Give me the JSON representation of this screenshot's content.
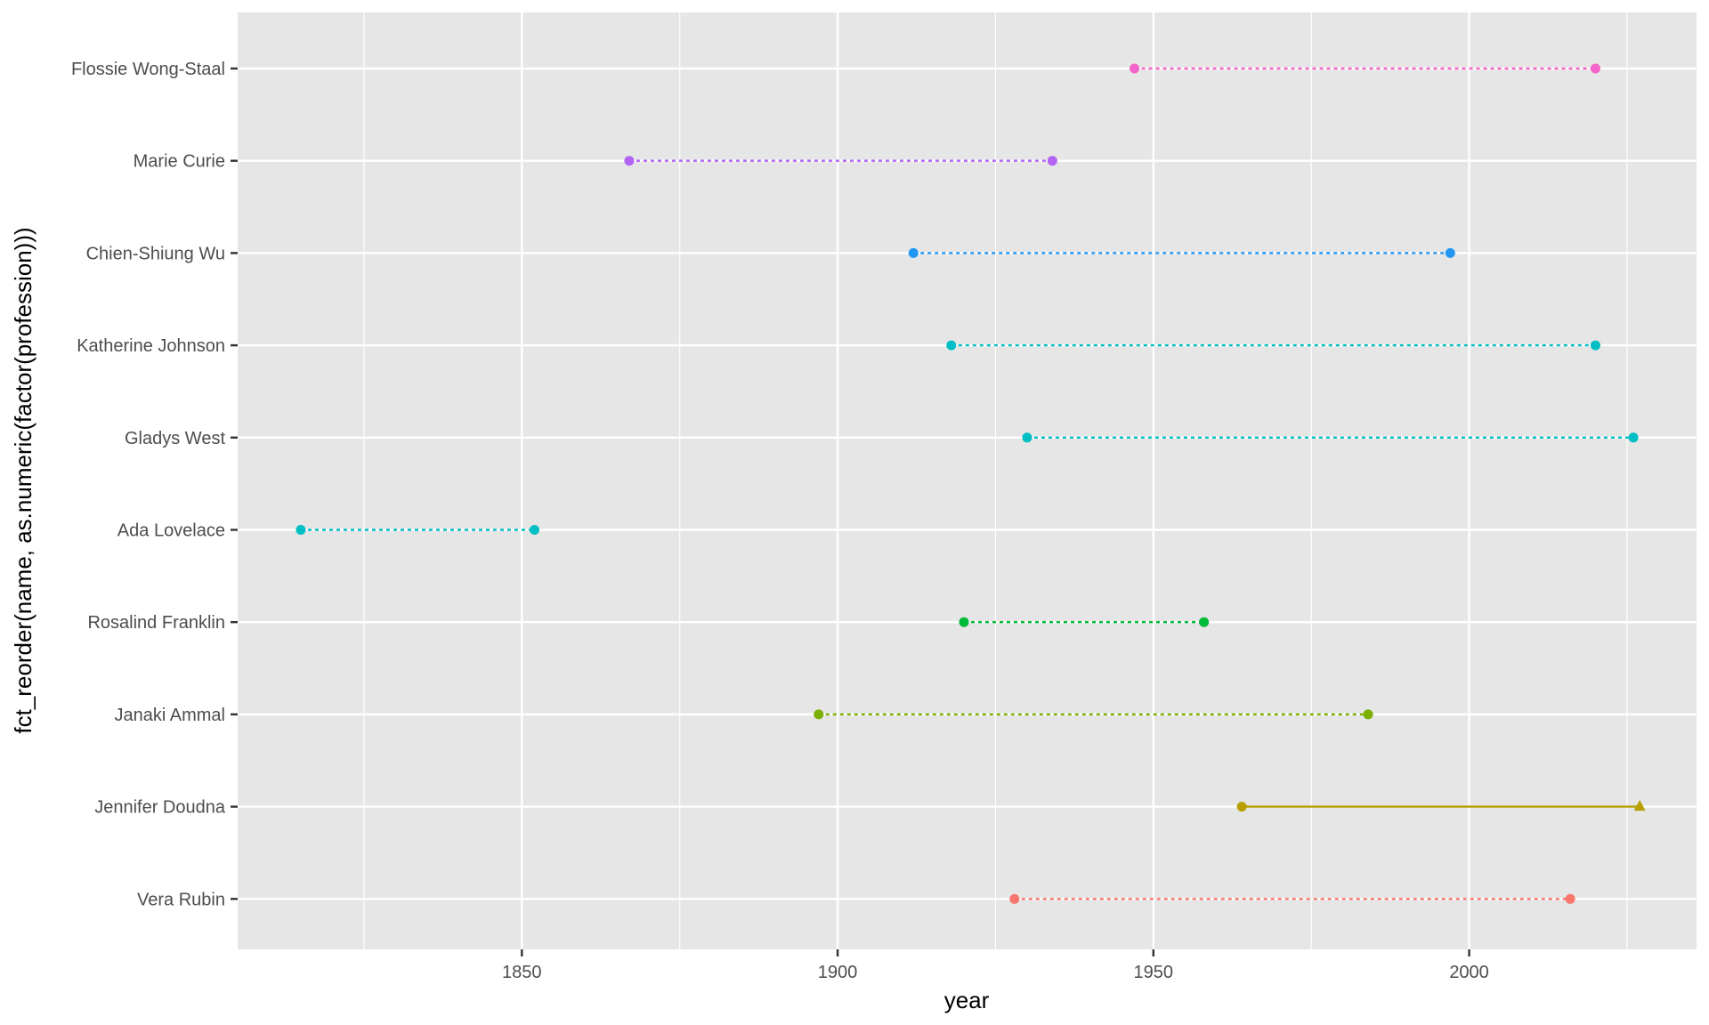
{
  "chart_data": {
    "type": "dumbbell",
    "title": "",
    "xlabel": "year",
    "ylabel": "fct_reorder(name, as.numeric(factor(profession)))",
    "xlim": [
      1805,
      2036
    ],
    "x_ticks": [
      1850,
      1900,
      1950,
      2000
    ],
    "x_minor_ticks": [
      1825,
      1875,
      1925,
      1975,
      2025
    ],
    "grid": true,
    "legend": "none",
    "categories": [
      "Vera Rubin",
      "Jennifer Doudna",
      "Janaki Ammal",
      "Rosalind Franklin",
      "Ada Lovelace",
      "Gladys West",
      "Katherine Johnson",
      "Chien-Shiung Wu",
      "Marie Curie",
      "Flossie Wong-Staal"
    ],
    "series": [
      {
        "category": "Vera Rubin",
        "start": 1928,
        "end": 2016,
        "color": "#F8766D",
        "line": "dotted",
        "end_shape": "circle"
      },
      {
        "category": "Jennifer Doudna",
        "start": 1964,
        "end": 2027,
        "color": "#B79F00",
        "line": "solid",
        "end_shape": "triangle"
      },
      {
        "category": "Janaki Ammal",
        "start": 1897,
        "end": 1984,
        "color": "#7CAE00",
        "line": "dotted",
        "end_shape": "circle"
      },
      {
        "category": "Rosalind Franklin",
        "start": 1920,
        "end": 1958,
        "color": "#00BA38",
        "line": "dotted",
        "end_shape": "circle"
      },
      {
        "category": "Ada Lovelace",
        "start": 1815,
        "end": 1852,
        "color": "#00BFC4",
        "line": "dotted",
        "end_shape": "circle"
      },
      {
        "category": "Gladys West",
        "start": 1930,
        "end": 2026,
        "color": "#00BFC4",
        "line": "dotted",
        "end_shape": "circle"
      },
      {
        "category": "Katherine Johnson",
        "start": 1918,
        "end": 2020,
        "color": "#00BFC4",
        "line": "dotted",
        "end_shape": "circle"
      },
      {
        "category": "Chien-Shiung Wu",
        "start": 1912,
        "end": 1997,
        "color": "#2196F3",
        "line": "dotted",
        "end_shape": "circle"
      },
      {
        "category": "Marie Curie",
        "start": 1867,
        "end": 1934,
        "color": "#B464F5",
        "line": "dotted",
        "end_shape": "circle"
      },
      {
        "category": "Flossie Wong-Staal",
        "start": 1947,
        "end": 2020,
        "color": "#F564C8",
        "line": "dotted",
        "end_shape": "circle"
      }
    ]
  }
}
